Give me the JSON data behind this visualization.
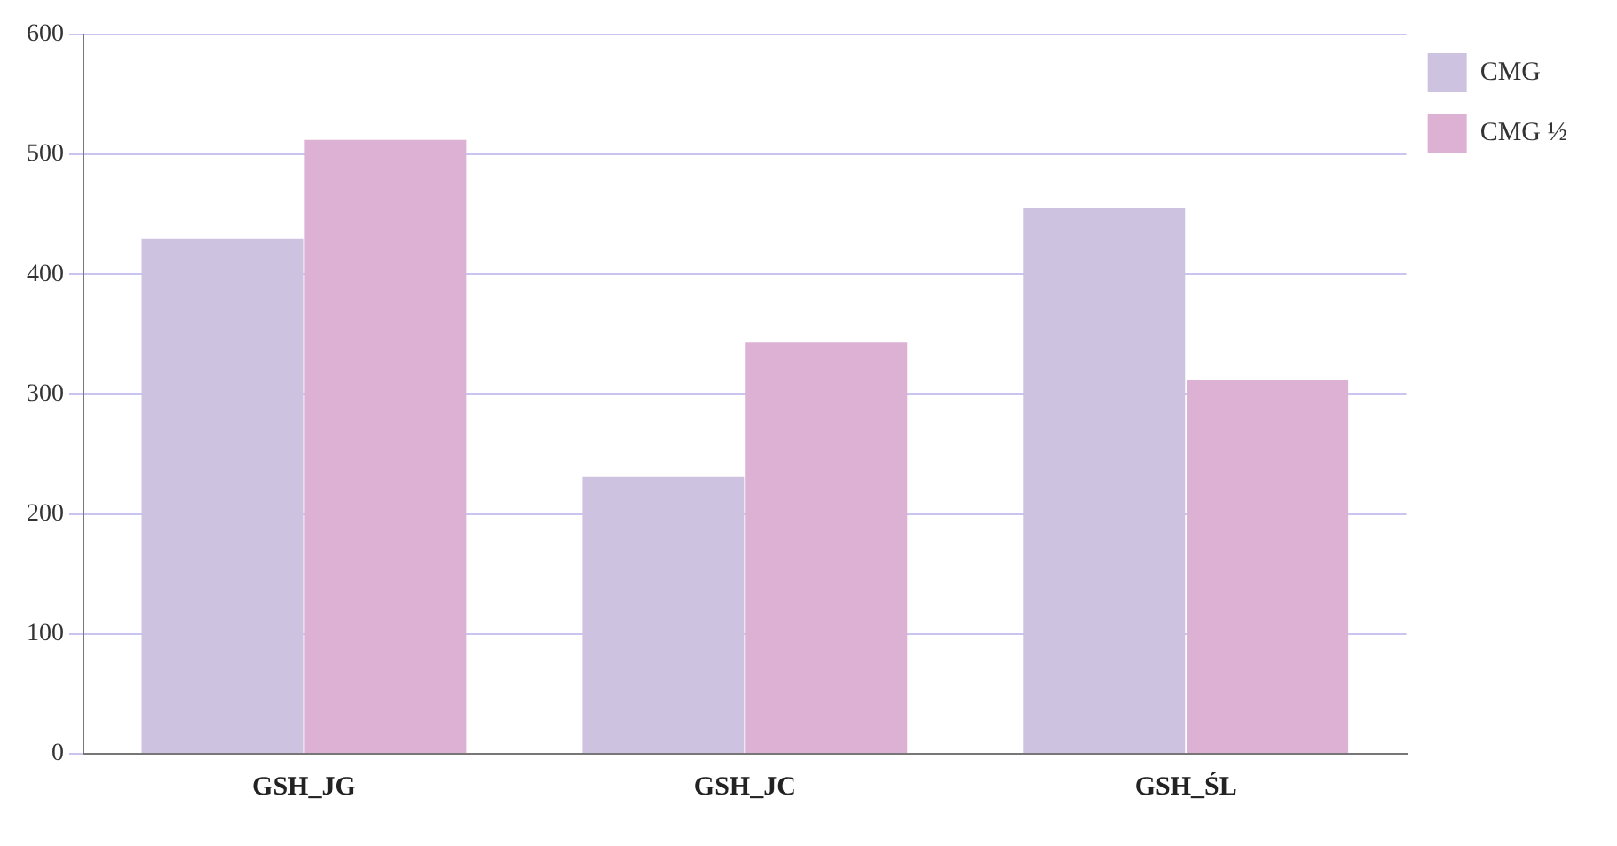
{
  "chart_data": {
    "type": "bar",
    "categories": [
      "GSH_JG",
      "GSH_JC",
      "GSH_ŚL"
    ],
    "series": [
      {
        "name": "CMG",
        "color": "#cdc3e0",
        "values": [
          430,
          231,
          455
        ]
      },
      {
        "name": "CMG ½",
        "color": "#dcb1d4",
        "values": [
          512,
          343,
          312
        ]
      }
    ],
    "ylim": [
      0,
      600
    ],
    "yticks": [
      0,
      100,
      200,
      300,
      400,
      500,
      600
    ],
    "grid": "y",
    "legend": "top right"
  }
}
